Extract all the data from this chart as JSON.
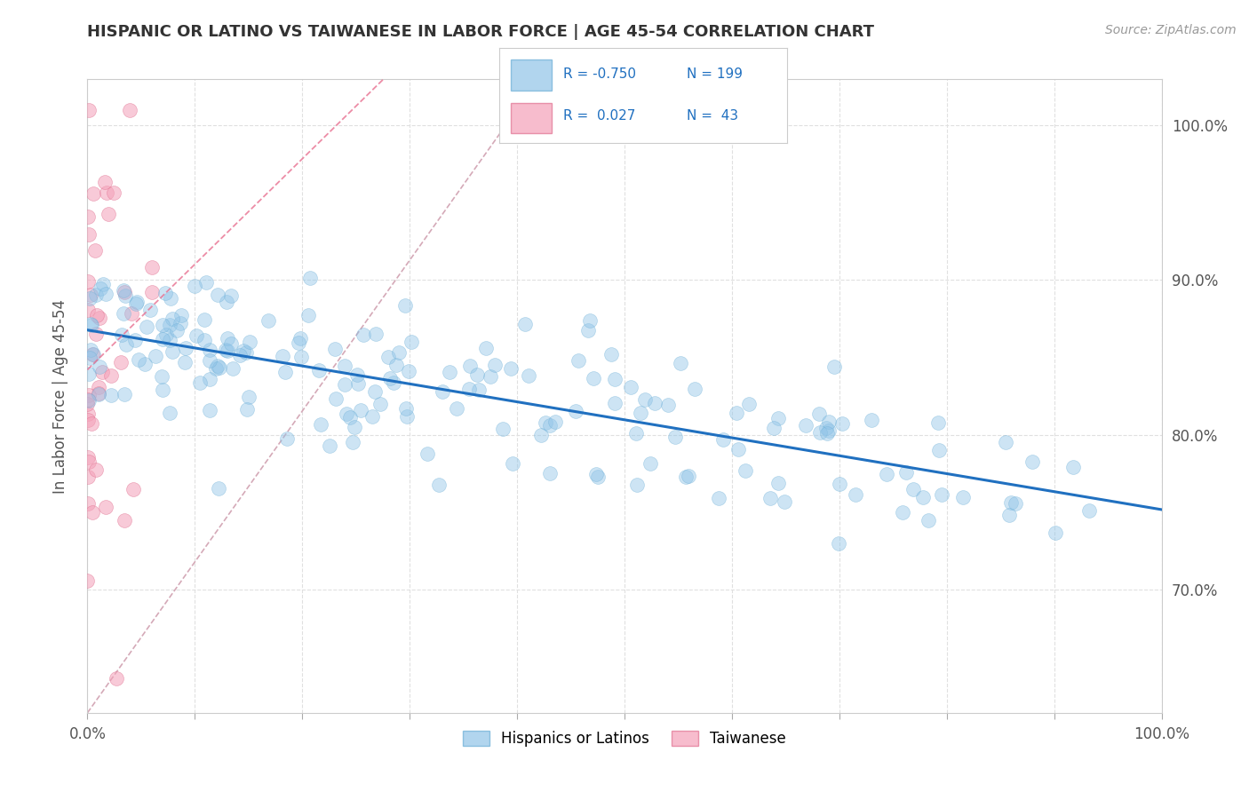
{
  "title": "HISPANIC OR LATINO VS TAIWANESE IN LABOR FORCE | AGE 45-54 CORRELATION CHART",
  "source_text": "Source: ZipAtlas.com",
  "ylabel": "In Labor Force | Age 45-54",
  "legend_entry1": {
    "color": "#add4f0",
    "R": "-0.750",
    "N": "199",
    "label": "Hispanics or Latinos"
  },
  "legend_entry2": {
    "color": "#f4b8c8",
    "R": "0.027",
    "N": "43",
    "label": "Taiwanese"
  },
  "blue_scatter_color": "#90c4e8",
  "blue_scatter_edge": "#6aaed6",
  "pink_scatter_color": "#f4a0b8",
  "pink_scatter_edge": "#e07090",
  "blue_line_color": "#2070c0",
  "pink_line_color": "#e87090",
  "ref_line_color": "#d0a0b0",
  "grid_color": "#e0e0e0",
  "background_color": "#ffffff",
  "xlim": [
    0.0,
    1.0
  ],
  "ylim": [
    0.62,
    1.03
  ],
  "N_blue": 199,
  "N_pink": 43,
  "r_blue": -0.75,
  "r_pink": 0.027,
  "seed": 42
}
